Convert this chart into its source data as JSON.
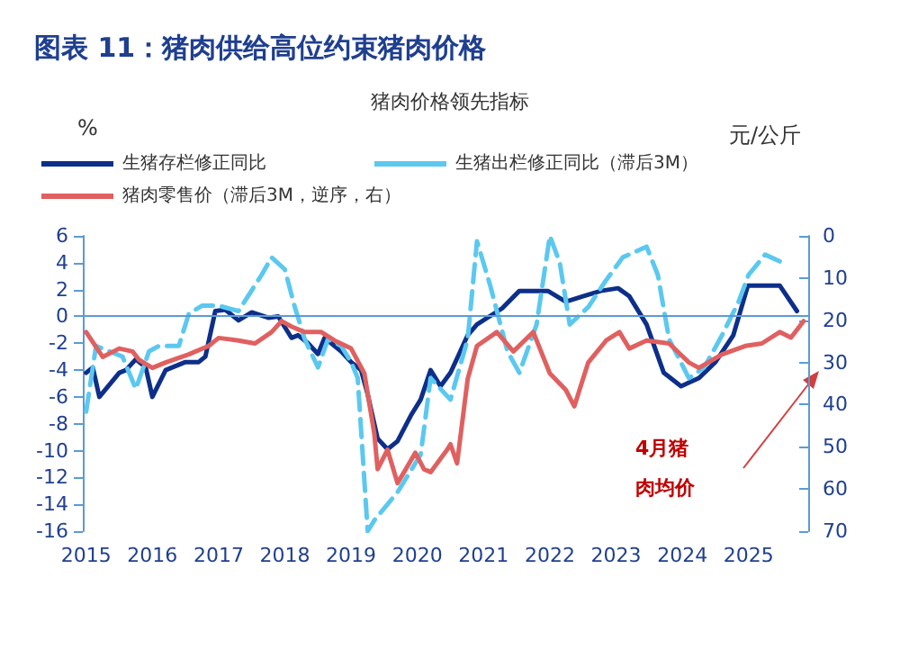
{
  "chart_data": {
    "type": "line",
    "title": "图表 11：猪肉供给高位约束猪肉价格",
    "subtitle": "猪肉价格领先指标",
    "ylabel": "%",
    "y2label": "元/公斤",
    "xlim": [
      2014.95,
      2025.9
    ],
    "xticks": [
      2015,
      2016,
      2017,
      2018,
      2019,
      2020,
      2021,
      2022,
      2023,
      2024,
      2025
    ],
    "ylim": [
      -16,
      6
    ],
    "yticks": [
      -16,
      -14,
      -12,
      -10,
      -8,
      -6,
      -4,
      -2,
      0,
      2,
      4,
      6
    ],
    "y2lim": [
      70,
      0
    ],
    "y2ticks": [
      0,
      10,
      20,
      30,
      40,
      50,
      60,
      70
    ],
    "grid": false,
    "legend": "top",
    "marker": "none",
    "ref_lines": [
      {
        "axis": "y",
        "value": 0,
        "color": "#5b9bd5"
      }
    ],
    "annotations": [
      "4月猪肉均价"
    ],
    "series": [
      {
        "name": "生猪存栏修正同比",
        "color": "#0d2f8a",
        "line_style": "solid",
        "x": [
          2015.0,
          2015.1,
          2015.2,
          2015.5,
          2015.6,
          2015.75,
          2015.9,
          2016.0,
          2016.2,
          2016.5,
          2016.7,
          2016.8,
          2016.95,
          2017.1,
          2017.3,
          2017.5,
          2017.75,
          2017.9,
          2018.1,
          2018.2,
          2018.35,
          2018.5,
          2018.6,
          2018.85,
          2019.0,
          2019.15,
          2019.25,
          2019.4,
          2019.55,
          2019.7,
          2019.9,
          2020.05,
          2020.2,
          2020.35,
          2020.5,
          2020.76,
          2020.9,
          2021.28,
          2021.54,
          2021.97,
          2022.24,
          2022.5,
          2022.77,
          2023.03,
          2023.2,
          2023.46,
          2023.72,
          2023.98,
          2024.25,
          2024.5,
          2024.77,
          2024.99,
          2025.47,
          2025.73
        ],
        "values": [
          -4.2,
          -3.8,
          -6.0,
          -4.2,
          -4.0,
          -3.2,
          -3.8,
          -6.0,
          -4.0,
          -3.4,
          -3.4,
          -3.0,
          0.4,
          0.5,
          -0.3,
          0.3,
          -0.1,
          0,
          -1.6,
          -1.4,
          -2.0,
          -2.8,
          -1.6,
          -2.6,
          -3.4,
          -4.0,
          -5.8,
          -9.1,
          -9.9,
          -9.3,
          -7.4,
          -6.2,
          -4.0,
          -5.2,
          -4.2,
          -1.4,
          -0.6,
          0.6,
          1.9,
          1.9,
          1.1,
          1.5,
          1.9,
          2.1,
          1.5,
          -0.6,
          -4.2,
          -5.2,
          -4.6,
          -3.4,
          -1.4,
          2.3,
          2.3,
          0.4
        ]
      },
      {
        "name": "生猪出栏修正同比（滞后3M）",
        "color": "#5bc8f0",
        "line_style": "dashed",
        "x": [
          2015.0,
          2015.15,
          2015.35,
          2015.55,
          2015.75,
          2015.95,
          2016.1,
          2016.4,
          2016.55,
          2016.75,
          2017.0,
          2017.3,
          2017.65,
          2017.8,
          2018.0,
          2018.15,
          2018.3,
          2018.5,
          2018.65,
          2018.85,
          2019.0,
          2019.1,
          2019.25,
          2019.35,
          2019.7,
          2020.05,
          2020.2,
          2020.5,
          2020.76,
          2020.9,
          2021.1,
          2021.36,
          2021.54,
          2021.8,
          2022.0,
          2022.15,
          2022.3,
          2022.58,
          2022.85,
          2023.1,
          2023.46,
          2023.63,
          2023.8,
          2024.1,
          2024.33,
          2024.6,
          2024.85,
          2025.0,
          2025.25,
          2025.47
        ],
        "values": [
          -7.1,
          -2.2,
          -2.6,
          -3.0,
          -5.4,
          -2.6,
          -2.2,
          -2.2,
          0.2,
          0.8,
          0.8,
          0.4,
          3.1,
          4.4,
          3.5,
          0.7,
          -1.7,
          -3.8,
          -1.7,
          -2.2,
          -3.4,
          -4.6,
          -16,
          -15.2,
          -13.1,
          -10.3,
          -4.6,
          -6.2,
          -1.7,
          5.6,
          2.3,
          -2.6,
          -4.2,
          -0.6,
          6.0,
          4.0,
          -0.6,
          0.7,
          2.7,
          4.4,
          5.2,
          3.1,
          -1.7,
          -4.6,
          -3.8,
          -1.4,
          1.1,
          3.1,
          4.6,
          4.1
        ]
      },
      {
        "name": "猪肉零售价（滞后3M，逆序，右）",
        "color": "#e06060",
        "line_style": "solid",
        "axis": "y2",
        "x": [
          2015.0,
          2015.25,
          2015.5,
          2015.7,
          2015.8,
          2016.0,
          2016.2,
          2016.55,
          2016.85,
          2017.0,
          2017.3,
          2017.55,
          2017.8,
          2017.95,
          2018.1,
          2018.3,
          2018.55,
          2018.75,
          2019.0,
          2019.2,
          2019.35,
          2019.4,
          2019.55,
          2019.7,
          2019.8,
          2019.97,
          2020.1,
          2020.2,
          2020.45,
          2020.5,
          2020.6,
          2020.76,
          2020.9,
          2021.2,
          2021.45,
          2021.75,
          2022.0,
          2022.24,
          2022.37,
          2022.58,
          2022.85,
          2023.05,
          2023.2,
          2023.46,
          2023.8,
          2024.1,
          2024.25,
          2024.6,
          2024.95,
          2025.2,
          2025.47,
          2025.64,
          2025.83
        ],
        "values": [
          22.8,
          28.7,
          26.7,
          27.4,
          29.4,
          31.3,
          30.0,
          28.1,
          26.1,
          24.2,
          24.8,
          25.5,
          22.8,
          20.2,
          21.5,
          22.8,
          22.8,
          24.8,
          26.7,
          32.6,
          46.8,
          55.3,
          50.7,
          58.6,
          56.0,
          51.4,
          55.3,
          56.0,
          50.7,
          49.4,
          53.9,
          33.9,
          26.1,
          22.8,
          27.4,
          22.8,
          32.6,
          36.5,
          40.4,
          30.0,
          24.8,
          22.8,
          26.7,
          24.8,
          25.5,
          30.0,
          31.3,
          28.1,
          26.1,
          25.5,
          22.8,
          24.1,
          20.2
        ]
      }
    ]
  }
}
